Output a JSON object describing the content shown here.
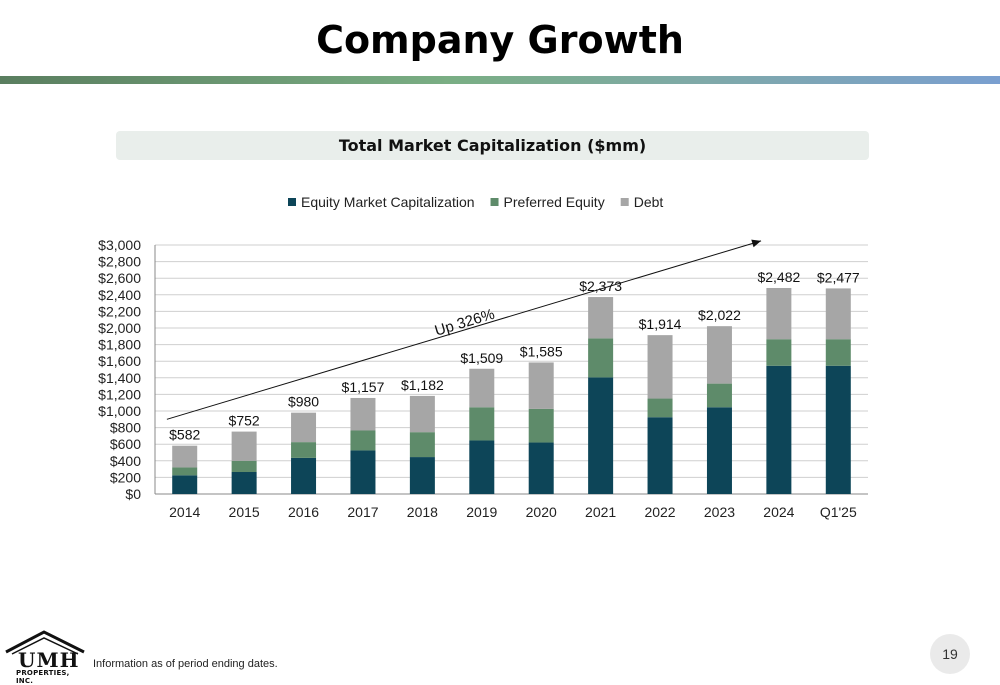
{
  "page": {
    "title": "Company Growth",
    "subtitle": "Total Market Capitalization ($mm)",
    "footnote": "Information as of period ending dates.",
    "page_number": "19",
    "logo_text": "UMH",
    "logo_subtext": "PROPERTIES, INC."
  },
  "chart_data": {
    "type": "bar",
    "stacked": true,
    "categories": [
      "2014",
      "2015",
      "2016",
      "2017",
      "2018",
      "2019",
      "2020",
      "2021",
      "2022",
      "2023",
      "2024",
      "Q1'25"
    ],
    "series": [
      {
        "name": "Equity Market Capitalization",
        "color": "#0d4558",
        "values": [
          225,
          265,
          435,
          525,
          445,
          645,
          620,
          1405,
          925,
          1045,
          1545,
          1545
        ]
      },
      {
        "name": "Preferred Equity",
        "color": "#5e8b6a",
        "values": [
          95,
          135,
          190,
          240,
          300,
          400,
          405,
          470,
          225,
          285,
          320,
          320
        ]
      },
      {
        "name": "Debt",
        "color": "#a6a6a6",
        "values": [
          262,
          352,
          355,
          392,
          437,
          464,
          560,
          498,
          764,
          692,
          617,
          612
        ]
      }
    ],
    "totals_labels": [
      "$582",
      "$752",
      "$980",
      "$1,157",
      "$1,182",
      "$1,509",
      "$1,585",
      "$2,373",
      "$1,914",
      "$2,022",
      "$2,482",
      "$2,477"
    ],
    "totals": [
      582,
      752,
      980,
      1157,
      1182,
      1509,
      1585,
      2373,
      1914,
      2022,
      2482,
      2477
    ],
    "ylim": [
      0,
      3000
    ],
    "yticks": [
      0,
      200,
      400,
      600,
      800,
      1000,
      1200,
      1400,
      1600,
      1800,
      2000,
      2200,
      2400,
      2600,
      2800,
      3000
    ],
    "ytick_labels": [
      "$0",
      "$200",
      "$400",
      "$600",
      "$800",
      "$1,000",
      "$1,200",
      "$1,400",
      "$1,600",
      "$1,800",
      "$2,000",
      "$2,200",
      "$2,400",
      "$2,600",
      "$2,800",
      "$3,000"
    ],
    "grid": true,
    "legend_position": "top",
    "annotation": {
      "text": "Up 326%",
      "arrow_from": 900,
      "arrow_to": 3050
    }
  }
}
